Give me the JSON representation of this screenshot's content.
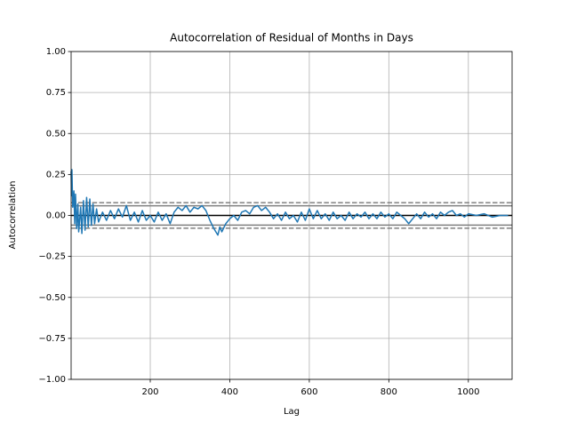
{
  "chart_data": {
    "type": "line",
    "title": "Autocorrelation of Residual of Months in Days",
    "x_label": "Lag",
    "y_label": "Autocorrelation",
    "xlim": [
      1,
      1110
    ],
    "ylim": [
      -1,
      1
    ],
    "xticks": [
      200,
      400,
      600,
      800,
      1000
    ],
    "yticks": [
      {
        "value": -1,
        "label": "−1.00"
      },
      {
        "value": -0.75,
        "label": "−0.75"
      },
      {
        "value": -0.5,
        "label": "−0.50"
      },
      {
        "value": -0.25,
        "label": "−0.25"
      },
      {
        "value": 0,
        "label": "0.00"
      },
      {
        "value": 0.25,
        "label": "0.25"
      },
      {
        "value": 0.5,
        "label": "0.50"
      },
      {
        "value": 0.75,
        "label": "0.75"
      },
      {
        "value": 1,
        "label": "1.00"
      }
    ],
    "grid": true,
    "reference_lines": [
      {
        "value": 0.078,
        "color": "#808080",
        "dashed": true
      },
      {
        "value": 0.059,
        "color": "#808080",
        "dashed": false
      },
      {
        "value": 0,
        "color": "#000000",
        "dashed": false
      },
      {
        "value": -0.059,
        "color": "#808080",
        "dashed": false
      },
      {
        "value": -0.078,
        "color": "#808080",
        "dashed": true
      }
    ],
    "series": [
      {
        "name": "autocorrelation",
        "color": "#1f77b4",
        "x": [
          1,
          2,
          3,
          5,
          8,
          10,
          12,
          15,
          18,
          20,
          25,
          28,
          32,
          36,
          40,
          44,
          48,
          52,
          56,
          60,
          65,
          70,
          80,
          90,
          100,
          110,
          120,
          130,
          140,
          150,
          160,
          170,
          180,
          190,
          200,
          210,
          220,
          230,
          240,
          250,
          260,
          270,
          280,
          290,
          300,
          310,
          320,
          330,
          340,
          350,
          360,
          370,
          375,
          380,
          390,
          400,
          410,
          420,
          430,
          440,
          450,
          460,
          470,
          480,
          490,
          500,
          510,
          520,
          530,
          540,
          550,
          560,
          570,
          580,
          590,
          600,
          610,
          620,
          630,
          640,
          650,
          660,
          670,
          680,
          690,
          700,
          710,
          720,
          730,
          740,
          750,
          760,
          770,
          780,
          790,
          800,
          810,
          820,
          830,
          840,
          850,
          860,
          870,
          880,
          890,
          900,
          910,
          920,
          930,
          940,
          950,
          960,
          970,
          980,
          990,
          1000,
          1020,
          1040,
          1060,
          1080,
          1100
        ],
        "values": [
          0.27,
          0.12,
          0.28,
          0.05,
          0.15,
          -0.05,
          0.13,
          -0.08,
          0.07,
          -0.1,
          0.05,
          -0.11,
          0.09,
          -0.09,
          0.11,
          -0.07,
          0.1,
          -0.06,
          0.07,
          -0.05,
          0.04,
          -0.04,
          0.02,
          -0.03,
          0.03,
          -0.02,
          0.04,
          -0.01,
          0.06,
          -0.03,
          0.02,
          -0.04,
          0.03,
          -0.03,
          0.0,
          -0.04,
          0.02,
          -0.03,
          0.01,
          -0.05,
          0.02,
          0.05,
          0.03,
          0.06,
          0.02,
          0.05,
          0.04,
          0.06,
          0.03,
          -0.03,
          -0.08,
          -0.12,
          -0.07,
          -0.1,
          -0.05,
          -0.02,
          0.0,
          -0.03,
          0.02,
          0.03,
          0.01,
          0.05,
          0.06,
          0.03,
          0.05,
          0.02,
          -0.02,
          0.01,
          -0.03,
          0.02,
          -0.02,
          0.0,
          -0.04,
          0.02,
          -0.03,
          0.04,
          -0.02,
          0.03,
          -0.02,
          0.01,
          -0.03,
          0.02,
          -0.02,
          0.0,
          -0.03,
          0.02,
          -0.02,
          0.01,
          -0.01,
          0.02,
          -0.02,
          0.01,
          -0.02,
          0.02,
          -0.01,
          0.01,
          -0.02,
          0.02,
          0.0,
          -0.02,
          -0.05,
          -0.02,
          0.01,
          -0.02,
          0.02,
          -0.01,
          0.01,
          -0.02,
          0.02,
          0.0,
          0.02,
          0.03,
          0.0,
          0.01,
          -0.01,
          0.01,
          0.0,
          0.01,
          -0.01,
          0.0,
          0.0
        ]
      }
    ]
  }
}
